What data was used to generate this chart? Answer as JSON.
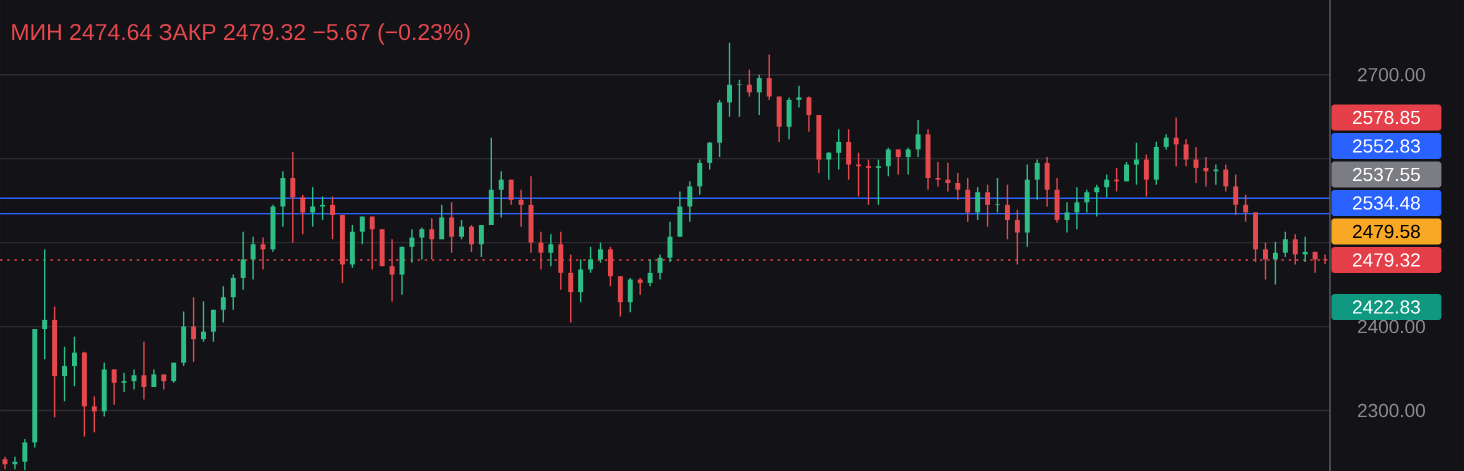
{
  "chart_data": {
    "type": "candlestick",
    "title": "МИН 2474.64  ЗАКР 2479.32  −5.67 (−0.23%)",
    "categories": [
      null,
      null,
      null,
      null,
      null,
      null,
      null,
      null,
      null,
      null,
      null,
      null,
      null,
      null,
      null,
      null,
      null,
      null,
      null,
      null,
      null,
      null,
      null,
      null,
      null,
      null,
      null,
      null,
      null,
      null,
      null,
      null,
      null,
      null,
      null,
      null,
      null,
      null,
      null,
      null,
      null,
      null,
      null,
      null,
      null,
      null,
      null,
      null,
      null,
      null,
      null,
      null,
      null,
      null,
      null,
      null,
      null,
      null,
      null,
      null,
      null,
      null,
      null,
      null,
      null,
      null,
      null,
      null,
      null,
      null,
      null,
      null,
      null,
      null,
      null,
      null,
      null,
      null,
      null,
      null,
      null,
      null,
      null,
      null,
      null,
      null,
      null,
      null,
      null,
      null,
      null,
      null,
      null,
      null,
      null,
      null,
      null,
      null,
      null,
      null,
      null,
      null,
      null,
      null,
      null,
      null,
      null,
      null,
      null,
      null,
      null,
      null,
      null,
      null,
      null,
      null,
      null,
      null,
      null,
      null,
      null,
      null,
      null,
      null,
      null,
      null,
      null,
      null,
      null,
      null,
      null,
      null,
      null,
      null
    ],
    "ohlc": [
      [
        2242,
        2245,
        2230,
        2236
      ],
      [
        2236,
        2245,
        2230,
        2239
      ],
      [
        2239,
        2266,
        2229,
        2262
      ],
      [
        2262,
        2397,
        2256,
        2397
      ],
      [
        2397,
        2492,
        2361,
        2408
      ],
      [
        2408,
        2424,
        2292,
        2341
      ],
      [
        2341,
        2376,
        2311,
        2353
      ],
      [
        2353,
        2388,
        2329,
        2369
      ],
      [
        2369,
        2370,
        2269,
        2305
      ],
      [
        2305,
        2317,
        2274,
        2299
      ],
      [
        2299,
        2357,
        2293,
        2349
      ],
      [
        2349,
        2349,
        2307,
        2333
      ],
      [
        2333,
        2345,
        2322,
        2335
      ],
      [
        2335,
        2349,
        2325,
        2342
      ],
      [
        2342,
        2382,
        2313,
        2328
      ],
      [
        2328,
        2349,
        2328,
        2343
      ],
      [
        2343,
        2343,
        2325,
        2335
      ],
      [
        2335,
        2357,
        2333,
        2357
      ],
      [
        2357,
        2418,
        2353,
        2400
      ],
      [
        2400,
        2435,
        2358,
        2385
      ],
      [
        2385,
        2430,
        2382,
        2394
      ],
      [
        2394,
        2420,
        2382,
        2420
      ],
      [
        2420,
        2448,
        2405,
        2435
      ],
      [
        2435,
        2462,
        2420,
        2458
      ],
      [
        2458,
        2513,
        2444,
        2480
      ],
      [
        2480,
        2507,
        2456,
        2498
      ],
      [
        2498,
        2506,
        2468,
        2492
      ],
      [
        2492,
        2545,
        2489,
        2543
      ],
      [
        2543,
        2585,
        2519,
        2577
      ],
      [
        2577,
        2608,
        2500,
        2554
      ],
      [
        2554,
        2557,
        2510,
        2536
      ],
      [
        2536,
        2566,
        2519,
        2543
      ],
      [
        2543,
        2555,
        2527,
        2545
      ],
      [
        2545,
        2555,
        2504,
        2533
      ],
      [
        2533,
        2533,
        2452,
        2474
      ],
      [
        2474,
        2521,
        2470,
        2513
      ],
      [
        2513,
        2531,
        2498,
        2531
      ],
      [
        2531,
        2531,
        2468,
        2516
      ],
      [
        2516,
        2516,
        2472,
        2472
      ],
      [
        2472,
        2504,
        2430,
        2462
      ],
      [
        2462,
        2495,
        2438,
        2495
      ],
      [
        2495,
        2516,
        2476,
        2506
      ],
      [
        2506,
        2518,
        2480,
        2516
      ],
      [
        2516,
        2529,
        2480,
        2504
      ],
      [
        2504,
        2545,
        2504,
        2530
      ],
      [
        2530,
        2548,
        2488,
        2507
      ],
      [
        2507,
        2527,
        2504,
        2519
      ],
      [
        2519,
        2521,
        2489,
        2498
      ],
      [
        2498,
        2521,
        2483,
        2521
      ],
      [
        2521,
        2625,
        2521,
        2563
      ],
      [
        2563,
        2585,
        2530,
        2575
      ],
      [
        2575,
        2575,
        2545,
        2551
      ],
      [
        2551,
        2563,
        2519,
        2545
      ],
      [
        2545,
        2579,
        2488,
        2500
      ],
      [
        2500,
        2513,
        2468,
        2488
      ],
      [
        2488,
        2510,
        2472,
        2498
      ],
      [
        2498,
        2513,
        2444,
        2464
      ],
      [
        2464,
        2486,
        2405,
        2441
      ],
      [
        2441,
        2480,
        2429,
        2468
      ],
      [
        2468,
        2495,
        2464,
        2480
      ],
      [
        2480,
        2500,
        2476,
        2492
      ],
      [
        2492,
        2495,
        2448,
        2460
      ],
      [
        2460,
        2460,
        2412,
        2429
      ],
      [
        2429,
        2458,
        2417,
        2456
      ],
      [
        2456,
        2458,
        2438,
        2452
      ],
      [
        2452,
        2480,
        2448,
        2464
      ],
      [
        2464,
        2486,
        2456,
        2482
      ],
      [
        2482,
        2525,
        2477,
        2507
      ],
      [
        2507,
        2561,
        2507,
        2543
      ],
      [
        2543,
        2573,
        2525,
        2567
      ],
      [
        2567,
        2599,
        2557,
        2595
      ],
      [
        2595,
        2620,
        2587,
        2619
      ],
      [
        2619,
        2670,
        2602,
        2667
      ],
      [
        2667,
        2738,
        2650,
        2688
      ],
      [
        2688,
        2694,
        2650,
        2688
      ],
      [
        2688,
        2706,
        2674,
        2679
      ],
      [
        2679,
        2700,
        2652,
        2696
      ],
      [
        2696,
        2724,
        2670,
        2674
      ],
      [
        2674,
        2674,
        2620,
        2638
      ],
      [
        2638,
        2673,
        2623,
        2670
      ],
      [
        2670,
        2687,
        2661,
        2673
      ],
      [
        2673,
        2674,
        2632,
        2652
      ],
      [
        2652,
        2652,
        2583,
        2599
      ],
      [
        2599,
        2608,
        2575,
        2607
      ],
      [
        2607,
        2635,
        2587,
        2620
      ],
      [
        2620,
        2635,
        2575,
        2593
      ],
      [
        2593,
        2607,
        2555,
        2591
      ],
      [
        2591,
        2599,
        2545,
        2589
      ],
      [
        2589,
        2599,
        2545,
        2591
      ],
      [
        2591,
        2613,
        2579,
        2611
      ],
      [
        2611,
        2611,
        2581,
        2602
      ],
      [
        2602,
        2613,
        2581,
        2611
      ],
      [
        2611,
        2646,
        2602,
        2629
      ],
      [
        2629,
        2635,
        2563,
        2577
      ],
      [
        2577,
        2596,
        2567,
        2575
      ],
      [
        2575,
        2595,
        2561,
        2571
      ],
      [
        2571,
        2583,
        2551,
        2563
      ],
      [
        2563,
        2577,
        2525,
        2536
      ],
      [
        2536,
        2566,
        2527,
        2560
      ],
      [
        2560,
        2569,
        2519,
        2545
      ],
      [
        2545,
        2577,
        2536,
        2545
      ],
      [
        2545,
        2569,
        2504,
        2527
      ],
      [
        2527,
        2539,
        2474,
        2512
      ],
      [
        2512,
        2593,
        2495,
        2575
      ],
      [
        2575,
        2599,
        2551,
        2595
      ],
      [
        2595,
        2602,
        2543,
        2563
      ],
      [
        2563,
        2577,
        2524,
        2527
      ],
      [
        2527,
        2548,
        2512,
        2536
      ],
      [
        2536,
        2566,
        2516,
        2548
      ],
      [
        2548,
        2563,
        2536,
        2560
      ],
      [
        2560,
        2569,
        2531,
        2566
      ],
      [
        2566,
        2581,
        2554,
        2575
      ],
      [
        2575,
        2589,
        2561,
        2573
      ],
      [
        2573,
        2596,
        2573,
        2593
      ],
      [
        2593,
        2619,
        2569,
        2599
      ],
      [
        2599,
        2605,
        2555,
        2575
      ],
      [
        2575,
        2620,
        2569,
        2614
      ],
      [
        2614,
        2629,
        2611,
        2625
      ],
      [
        2625,
        2649,
        2591,
        2617
      ],
      [
        2617,
        2623,
        2591,
        2599
      ],
      [
        2599,
        2614,
        2571,
        2589
      ],
      [
        2589,
        2602,
        2567,
        2585
      ],
      [
        2585,
        2593,
        2569,
        2587
      ],
      [
        2587,
        2593,
        2561,
        2567
      ],
      [
        2567,
        2581,
        2533,
        2545
      ],
      [
        2545,
        2557,
        2525,
        2536
      ],
      [
        2536,
        2536,
        2477,
        2492
      ],
      [
        2492,
        2500,
        2456,
        2480
      ],
      [
        2480,
        2501,
        2450,
        2488
      ],
      [
        2488,
        2513,
        2483,
        2504
      ],
      [
        2504,
        2510,
        2474,
        2486
      ],
      [
        2486,
        2507,
        2477,
        2489
      ],
      [
        2489,
        2489,
        2464,
        2480
      ],
      [
        2480,
        2486,
        2474.64,
        2479.32
      ]
    ],
    "ylim": [
      2228,
      2789
    ],
    "yticks": [
      {
        "value": 2300,
        "label": "2300.00"
      },
      {
        "value": 2400,
        "label": "2400.00"
      },
      {
        "value": 2500,
        "label": null
      },
      {
        "value": 2600,
        "label": null
      },
      {
        "value": 2700,
        "label": "2700.00"
      }
    ],
    "tick_labels": "y",
    "grid": "y",
    "ref_lines": [
      {
        "axis": "y",
        "value": 2552.83,
        "label": "2552.83",
        "color": "#2962ff",
        "line_style": "solid"
      },
      {
        "axis": "y",
        "value": 2534.48,
        "label": "2534.48",
        "color": "#2962ff",
        "line_style": "solid"
      },
      {
        "axis": "y",
        "value": 2479.32,
        "label": "2479.32",
        "color": "#e5404a",
        "line_style": "dotted"
      }
    ],
    "annotations": [
      "2578.85",
      "2537.55",
      "2479.58",
      "2422.83"
    ]
  }
}
